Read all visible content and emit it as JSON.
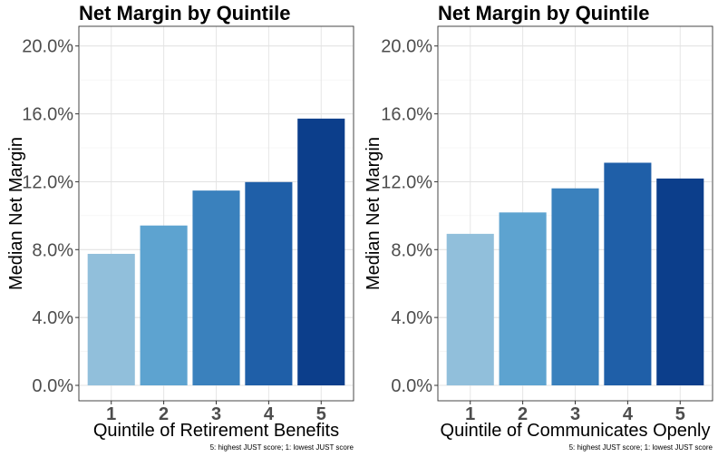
{
  "chart_data": [
    {
      "type": "bar",
      "title": "Net Margin by Quintile",
      "xlabel": "Quintile of Retirement Benefits",
      "ylabel": "Median Net Margin",
      "caption": "5: highest JUST score; 1: lowest JUST score",
      "categories": [
        "1",
        "2",
        "3",
        "4",
        "5"
      ],
      "values": [
        0.0775,
        0.0942,
        0.1148,
        0.1198,
        0.1572
      ],
      "ylim": [
        0,
        0.21
      ],
      "yticks": [
        0.0,
        0.04,
        0.08,
        0.12,
        0.16,
        0.2
      ],
      "ytick_labels": [
        "0.0%",
        "4.0%",
        "8.0%",
        "12.0%",
        "16.0%",
        "20.0%"
      ],
      "colors": [
        "#91bfdb",
        "#5da3d0",
        "#3a81bd",
        "#1f5fa8",
        "#0c3e8b"
      ],
      "grid": true
    },
    {
      "type": "bar",
      "title": "Net Margin by Quintile",
      "xlabel": "Quintile of Communicates Openly",
      "ylabel": "Median Net Margin",
      "caption": "5: highest JUST score; 1: lowest JUST score",
      "categories": [
        "1",
        "2",
        "3",
        "4",
        "5"
      ],
      "values": [
        0.0893,
        0.1019,
        0.1161,
        0.1312,
        0.1219
      ],
      "ylim": [
        0,
        0.21
      ],
      "yticks": [
        0.0,
        0.04,
        0.08,
        0.12,
        0.16,
        0.2
      ],
      "ytick_labels": [
        "0.0%",
        "4.0%",
        "8.0%",
        "12.0%",
        "16.0%",
        "20.0%"
      ],
      "colors": [
        "#91bfdb",
        "#5da3d0",
        "#3a81bd",
        "#1f5fa8",
        "#0c3e8b"
      ],
      "grid": true
    }
  ]
}
